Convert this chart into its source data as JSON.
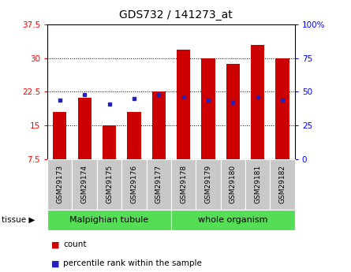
{
  "title": "GDS732 / 141273_at",
  "samples": [
    "GSM29173",
    "GSM29174",
    "GSM29175",
    "GSM29176",
    "GSM29177",
    "GSM29178",
    "GSM29179",
    "GSM29180",
    "GSM29181",
    "GSM29182"
  ],
  "counts": [
    18.0,
    21.2,
    15.0,
    18.0,
    22.5,
    31.8,
    30.0,
    28.8,
    33.0,
    30.0
  ],
  "percentiles": [
    44,
    48,
    41,
    45,
    48,
    46,
    44,
    42,
    46,
    44
  ],
  "ylim": [
    7.5,
    37.5
  ],
  "y2lim": [
    0,
    100
  ],
  "yticks": [
    7.5,
    15.0,
    22.5,
    30.0,
    37.5
  ],
  "y2ticks": [
    0,
    25,
    50,
    75,
    100
  ],
  "bar_color": "#cc0000",
  "dot_color": "#2222bb",
  "bar_bottom": 7.5,
  "tissue_groups": [
    {
      "label": "Malpighian tubule",
      "start": 0,
      "end": 5
    },
    {
      "label": "whole organism",
      "start": 5,
      "end": 10
    }
  ],
  "tissue_bg_color": "#55dd55",
  "sample_bg_color": "#c8c8c8",
  "legend_count_label": "count",
  "legend_pct_label": "percentile rank within the sample",
  "axis_bg": "#ffffff"
}
